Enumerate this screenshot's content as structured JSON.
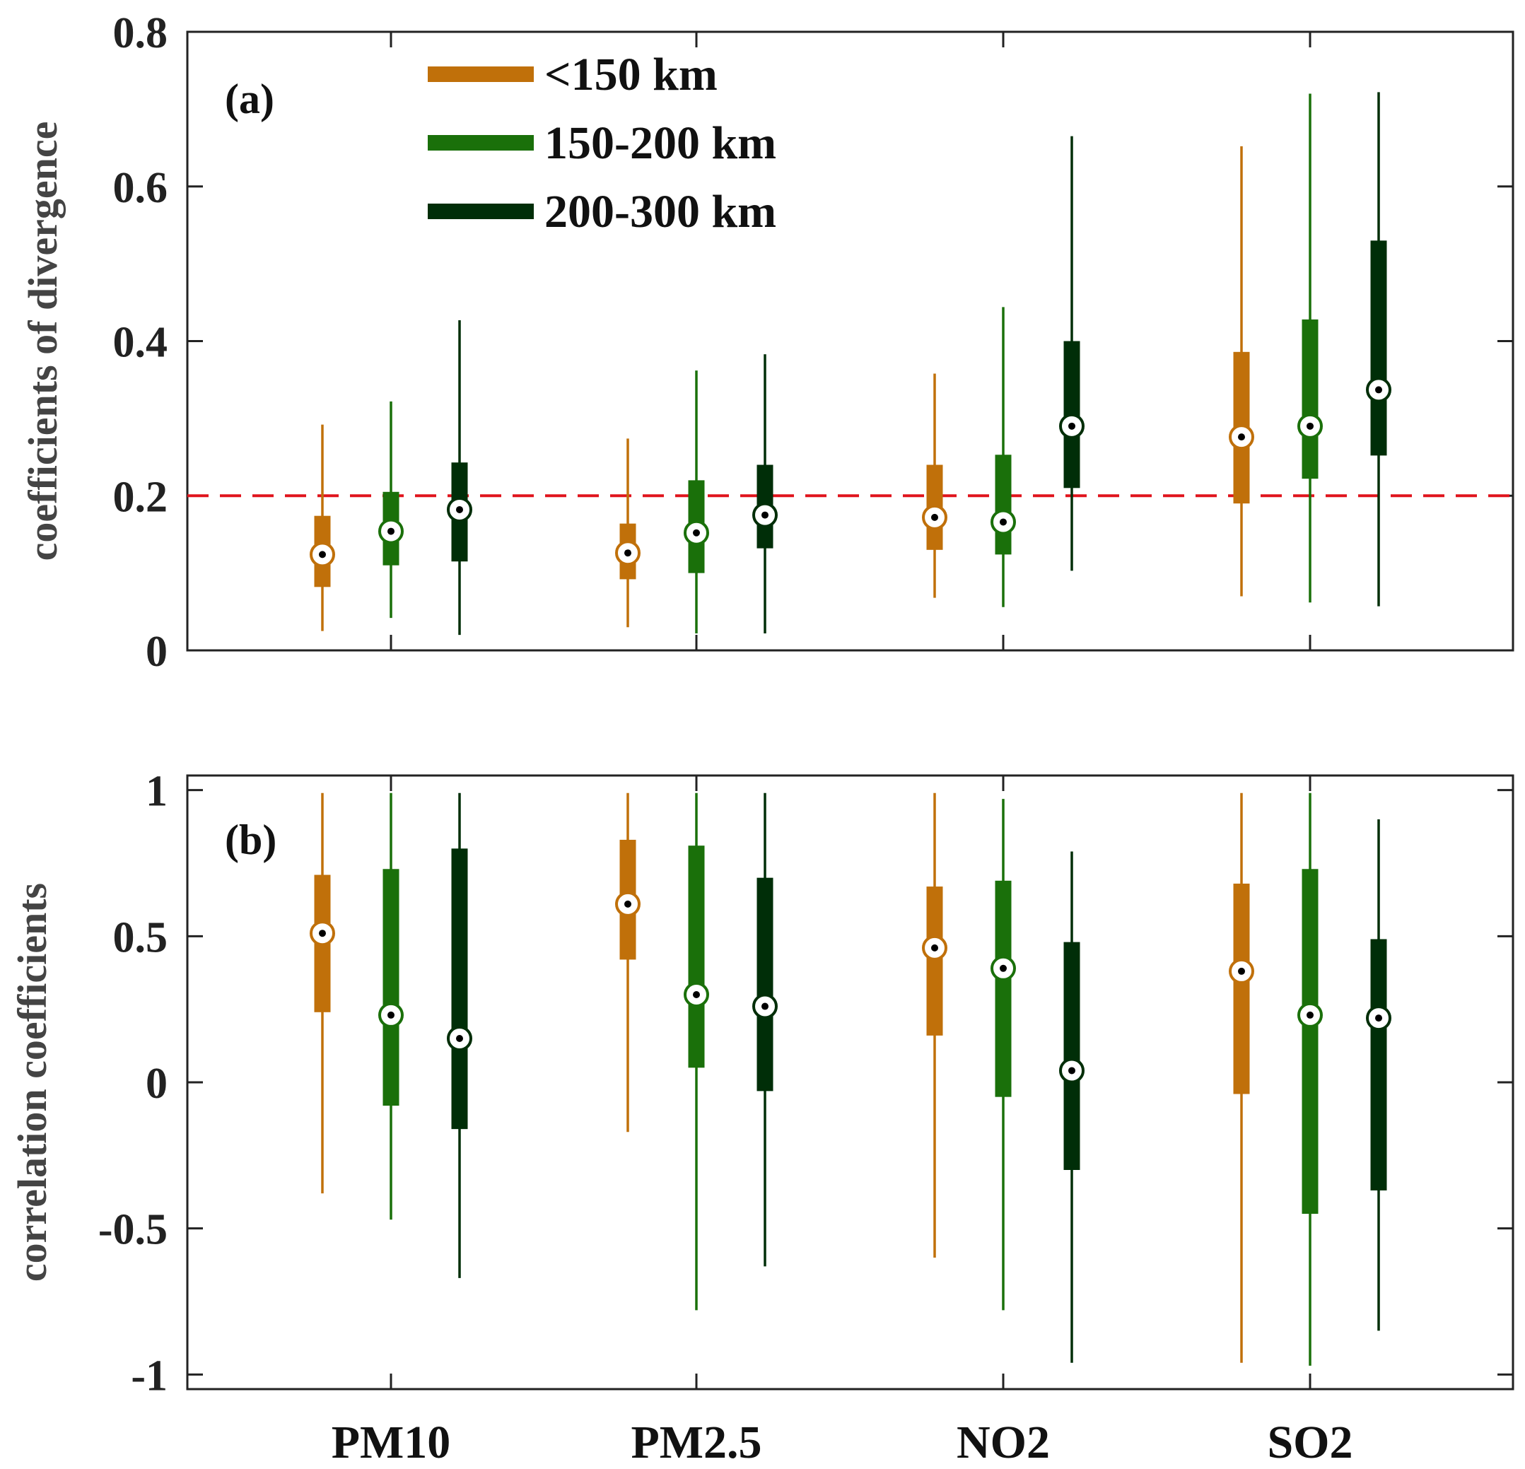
{
  "colors": {
    "lt150": "#c0700a",
    "g150_200": "#1a700a",
    "g200_300": "#002e08",
    "threshold": "#e0141c",
    "axis": "#222222"
  },
  "chart_data": [
    {
      "type": "boxplot",
      "panel_label": "(a)",
      "ylabel": "coefficients  of  divergence",
      "ylim": [
        0,
        0.8
      ],
      "yticks": [
        0,
        0.2,
        0.4,
        0.6,
        0.8
      ],
      "ytick_labels": [
        "0",
        "0.2",
        "0.4",
        "0.6",
        "0.8"
      ],
      "categories": [
        "PM10",
        "PM2.5",
        "NO2",
        "SO2"
      ],
      "threshold": 0.2,
      "legend": {
        "placement": "top-left",
        "entries": [
          {
            "label": "<150 km",
            "color_key": "lt150"
          },
          {
            "label": "150-200 km",
            "color_key": "g150_200"
          },
          {
            "label": "200-300 km",
            "color_key": "g200_300"
          }
        ]
      },
      "series": [
        {
          "name": "<150 km",
          "color_key": "lt150",
          "boxes": [
            {
              "min": 0.025,
              "q1": 0.082,
              "median": 0.124,
              "q3": 0.174,
              "max": 0.292
            },
            {
              "min": 0.03,
              "q1": 0.092,
              "median": 0.126,
              "q3": 0.164,
              "max": 0.274
            },
            {
              "min": 0.068,
              "q1": 0.13,
              "median": 0.172,
              "q3": 0.24,
              "max": 0.358
            },
            {
              "min": 0.07,
              "q1": 0.19,
              "median": 0.276,
              "q3": 0.386,
              "max": 0.652
            }
          ]
        },
        {
          "name": "150-200 km",
          "color_key": "g150_200",
          "boxes": [
            {
              "min": 0.042,
              "q1": 0.11,
              "median": 0.154,
              "q3": 0.205,
              "max": 0.322
            },
            {
              "min": 0.022,
              "q1": 0.1,
              "median": 0.152,
              "q3": 0.22,
              "max": 0.362
            },
            {
              "min": 0.056,
              "q1": 0.124,
              "median": 0.166,
              "q3": 0.253,
              "max": 0.444
            },
            {
              "min": 0.062,
              "q1": 0.222,
              "median": 0.29,
              "q3": 0.428,
              "max": 0.72
            }
          ]
        },
        {
          "name": "200-300 km",
          "color_key": "g200_300",
          "boxes": [
            {
              "min": 0.02,
              "q1": 0.115,
              "median": 0.182,
              "q3": 0.243,
              "max": 0.427
            },
            {
              "min": 0.022,
              "q1": 0.132,
              "median": 0.175,
              "q3": 0.24,
              "max": 0.383
            },
            {
              "min": 0.103,
              "q1": 0.21,
              "median": 0.29,
              "q3": 0.4,
              "max": 0.665
            },
            {
              "min": 0.057,
              "q1": 0.252,
              "median": 0.337,
              "q3": 0.53,
              "max": 0.722
            }
          ]
        }
      ]
    },
    {
      "type": "boxplot",
      "panel_label": "(b)",
      "ylabel": "correlation  coefficients",
      "ylim": [
        -1.05,
        1.05
      ],
      "yticks": [
        -1,
        -0.5,
        0,
        0.5,
        1
      ],
      "ytick_labels": [
        "-1",
        "-0.5",
        "0",
        "0.5",
        "1"
      ],
      "categories": [
        "PM10",
        "PM2.5",
        "NO2",
        "SO2"
      ],
      "series": [
        {
          "name": "<150 km",
          "color_key": "lt150",
          "boxes": [
            {
              "min": -0.38,
              "q1": 0.24,
              "median": 0.51,
              "q3": 0.71,
              "max": 0.99
            },
            {
              "min": -0.17,
              "q1": 0.42,
              "median": 0.61,
              "q3": 0.83,
              "max": 0.99
            },
            {
              "min": -0.6,
              "q1": 0.16,
              "median": 0.46,
              "q3": 0.67,
              "max": 0.99
            },
            {
              "min": -0.96,
              "q1": -0.04,
              "median": 0.38,
              "q3": 0.68,
              "max": 0.99
            }
          ]
        },
        {
          "name": "150-200 km",
          "color_key": "g150_200",
          "boxes": [
            {
              "min": -0.47,
              "q1": -0.08,
              "median": 0.23,
              "q3": 0.73,
              "max": 0.99
            },
            {
              "min": -0.78,
              "q1": 0.05,
              "median": 0.3,
              "q3": 0.81,
              "max": 0.99
            },
            {
              "min": -0.78,
              "q1": -0.05,
              "median": 0.39,
              "q3": 0.69,
              "max": 0.97
            },
            {
              "min": -0.97,
              "q1": -0.45,
              "median": 0.23,
              "q3": 0.73,
              "max": 0.99
            }
          ]
        },
        {
          "name": "200-300 km",
          "color_key": "g200_300",
          "boxes": [
            {
              "min": -0.67,
              "q1": -0.16,
              "median": 0.15,
              "q3": 0.8,
              "max": 0.99
            },
            {
              "min": -0.63,
              "q1": -0.03,
              "median": 0.26,
              "q3": 0.7,
              "max": 0.99
            },
            {
              "min": -0.96,
              "q1": -0.3,
              "median": 0.04,
              "q3": 0.48,
              "max": 0.79
            },
            {
              "min": -0.85,
              "q1": -0.37,
              "median": 0.22,
              "q3": 0.49,
              "max": 0.9
            }
          ]
        }
      ]
    }
  ]
}
